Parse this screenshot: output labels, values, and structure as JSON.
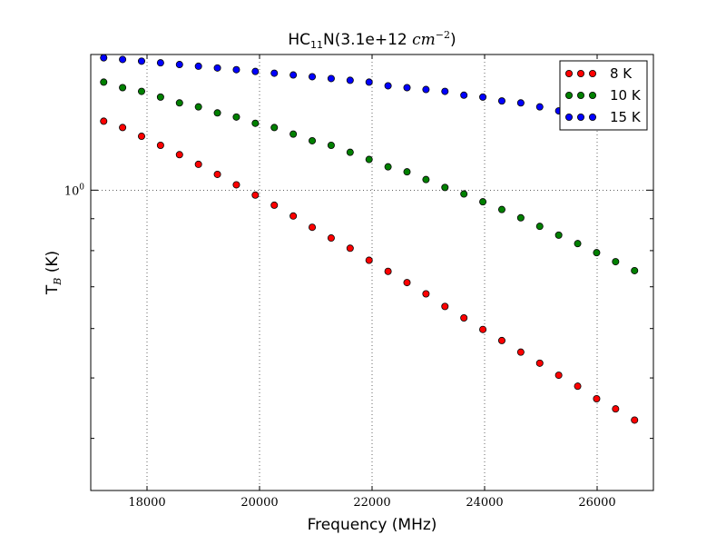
{
  "chart_data": {
    "type": "scatter",
    "title": {
      "molecule": "HC",
      "subscript": "11",
      "suffix": "N",
      "density_open": "(3.1e+12 ",
      "density_unit": "cm",
      "density_exp": "−2",
      "density_close": ")"
    },
    "xlabel": "Frequency (MHz)",
    "ylabel": {
      "main": "T",
      "subscript": "B",
      "suffix": " (K)"
    },
    "xlim": [
      17000,
      27000
    ],
    "ylim": [
      0.33,
      1.65
    ],
    "yscale": "log",
    "grid": true,
    "legend_position": "top-right",
    "x_ticks": [
      {
        "value": 18000,
        "label": "18000"
      },
      {
        "value": 20000,
        "label": "20000"
      },
      {
        "value": 22000,
        "label": "22000"
      },
      {
        "value": 24000,
        "label": "24000"
      },
      {
        "value": 26000,
        "label": "26000"
      }
    ],
    "y_ticks": [
      {
        "value": 1,
        "label_base": "10",
        "label_exp": "0"
      }
    ],
    "x": [
      17230,
      17566,
      17903,
      18240,
      18577,
      18914,
      19251,
      19588,
      19925,
      20262,
      20599,
      20936,
      21273,
      21610,
      21947,
      22284,
      22621,
      22958,
      23295,
      23632,
      23969,
      24306,
      24643,
      24980,
      25317,
      25654,
      25991,
      26328,
      26665
    ],
    "series": [
      {
        "name": "8 K",
        "color": "#ff0000",
        "values": [
          1.29,
          1.26,
          1.22,
          1.18,
          1.14,
          1.1,
          1.06,
          1.02,
          0.982,
          0.946,
          0.909,
          0.872,
          0.838,
          0.807,
          0.772,
          0.741,
          0.711,
          0.682,
          0.651,
          0.624,
          0.598,
          0.574,
          0.55,
          0.528,
          0.505,
          0.485,
          0.463,
          0.446,
          0.428
        ]
      },
      {
        "name": "10 K",
        "color": "#008000",
        "values": [
          1.49,
          1.46,
          1.44,
          1.41,
          1.38,
          1.36,
          1.33,
          1.31,
          1.28,
          1.26,
          1.23,
          1.2,
          1.18,
          1.15,
          1.12,
          1.09,
          1.07,
          1.04,
          1.01,
          0.986,
          0.958,
          0.931,
          0.903,
          0.875,
          0.847,
          0.821,
          0.794,
          0.768,
          0.743
        ]
      },
      {
        "name": "15 K",
        "color": "#0000ff",
        "values": [
          1.63,
          1.62,
          1.61,
          1.6,
          1.59,
          1.58,
          1.57,
          1.56,
          1.55,
          1.54,
          1.53,
          1.52,
          1.51,
          1.5,
          1.49,
          1.47,
          1.46,
          1.45,
          1.44,
          1.42,
          1.41,
          1.39,
          1.38,
          1.36,
          1.34,
          1.32,
          1.31,
          1.29,
          1.27
        ]
      }
    ]
  }
}
